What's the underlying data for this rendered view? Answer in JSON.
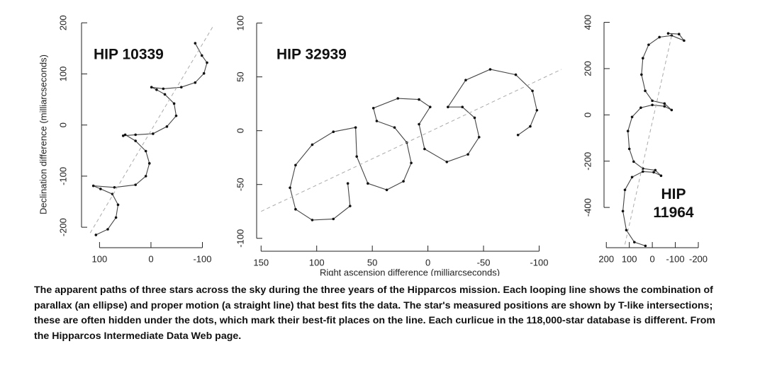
{
  "chart_data": [
    {
      "type": "line",
      "title": "HIP 10339",
      "ylabel": "Declination difference (milliarcseconds)",
      "xlim": [
        135,
        -120
      ],
      "ylim": [
        -240,
        210
      ],
      "xticks": [
        100,
        0,
        -100
      ],
      "yticks": [
        200,
        100,
        0,
        -100,
        -200
      ],
      "series": [
        {
          "color": "#444444",
          "markers": true,
          "x": [
            107,
            84,
            68,
            64,
            75,
            98,
            112,
            71,
            30,
            10,
            3,
            10,
            30,
            50,
            54,
            30,
            -4,
            -31,
            -49,
            -45,
            -27,
            -11,
            -1,
            -24,
            -59,
            -86,
            -103,
            -109,
            -99,
            -86
          ],
          "values": [
            -215,
            -204,
            -181,
            -156,
            -135,
            -125,
            -119,
            -122,
            -117,
            -100,
            -75,
            -51,
            -31,
            -19,
            -21,
            -19,
            -17,
            -3,
            18,
            42,
            60,
            69,
            74,
            71,
            74,
            83,
            101,
            122,
            136,
            160
          ]
        },
        {
          "color": "#aaaaaa",
          "dashed": true,
          "x": [
            118,
            -120
          ],
          "values": [
            -211,
            192
          ]
        }
      ]
    },
    {
      "type": "line",
      "title": "HIP 32939",
      "xlabel": "Right ascension difference (milliarcseconds)",
      "xlim": [
        154,
        -122
      ],
      "ylim": [
        -112,
        105
      ],
      "xticks": [
        150,
        100,
        50,
        0,
        -50,
        -100
      ],
      "yticks": [
        100,
        50,
        0,
        -50,
        -100
      ],
      "series": [
        {
          "color": "#444444",
          "markers": true,
          "x": [
            72,
            70,
            85,
            104,
            119,
            124,
            119,
            104,
            85,
            65,
            64,
            54,
            37,
            22,
            15,
            19,
            30,
            46,
            49,
            27,
            8,
            -2,
            8,
            3,
            -17,
            -36,
            -46,
            -42,
            -31,
            -18,
            -34,
            -56,
            -79,
            -94,
            -98,
            -92,
            -81
          ],
          "values": [
            -49,
            -70,
            -82,
            -83,
            -73,
            -53,
            -32,
            -13,
            -1,
            3,
            -24,
            -49,
            -55,
            -47,
            -30,
            -11,
            3,
            9,
            21,
            30,
            29,
            22,
            6,
            -17,
            -29,
            -22,
            -6,
            12,
            22,
            22,
            47,
            57,
            52,
            37,
            19,
            4,
            -4
          ]
        },
        {
          "color": "#aaaaaa",
          "dashed": true,
          "x": [
            150,
            -120
          ],
          "values": [
            -75,
            57
          ]
        }
      ]
    },
    {
      "type": "line",
      "title": "HIP 11964",
      "xlim": [
        210,
        -200
      ],
      "ylim": [
        -574,
        420
      ],
      "xticks": [
        200,
        100,
        0,
        -100,
        -200
      ],
      "yticks": [
        400,
        200,
        0,
        -200,
        -400
      ],
      "series": [
        {
          "color": "#444444",
          "markers": true,
          "x": [
            30,
            78,
            113,
            128,
            119,
            88,
            41,
            -6,
            -38,
            -13,
            41,
            81,
            100,
            106,
            88,
            50,
            0,
            -53,
            -84,
            -53,
            0,
            31,
            47,
            41,
            16,
            -31,
            -84,
            -138,
            -116,
            -69
          ],
          "values": [
            -566,
            -550,
            -498,
            -416,
            -324,
            -269,
            -245,
            -248,
            -263,
            -239,
            -232,
            -202,
            -147,
            -70,
            -9,
            31,
            43,
            37,
            21,
            49,
            61,
            104,
            174,
            245,
            303,
            336,
            343,
            321,
            349,
            352
          ]
        },
        {
          "color": "#aaaaaa",
          "dashed": true,
          "x": [
            119,
            -84
          ],
          "values": [
            -560,
            343
          ]
        }
      ]
    }
  ],
  "caption": "The apparent paths of three stars across the sky during the three years of the Hipparcos mission. Each looping line shows the combination of parallax (an ellipse) and proper motion (a straight line) that best fits the data. The star's measured positions are shown by T-like intersections; these are often hidden under the dots, which mark their best-fit places on the line. Each curlicue in the 118,000-star database is different. From the Hipparcos Intermediate Data Web page."
}
